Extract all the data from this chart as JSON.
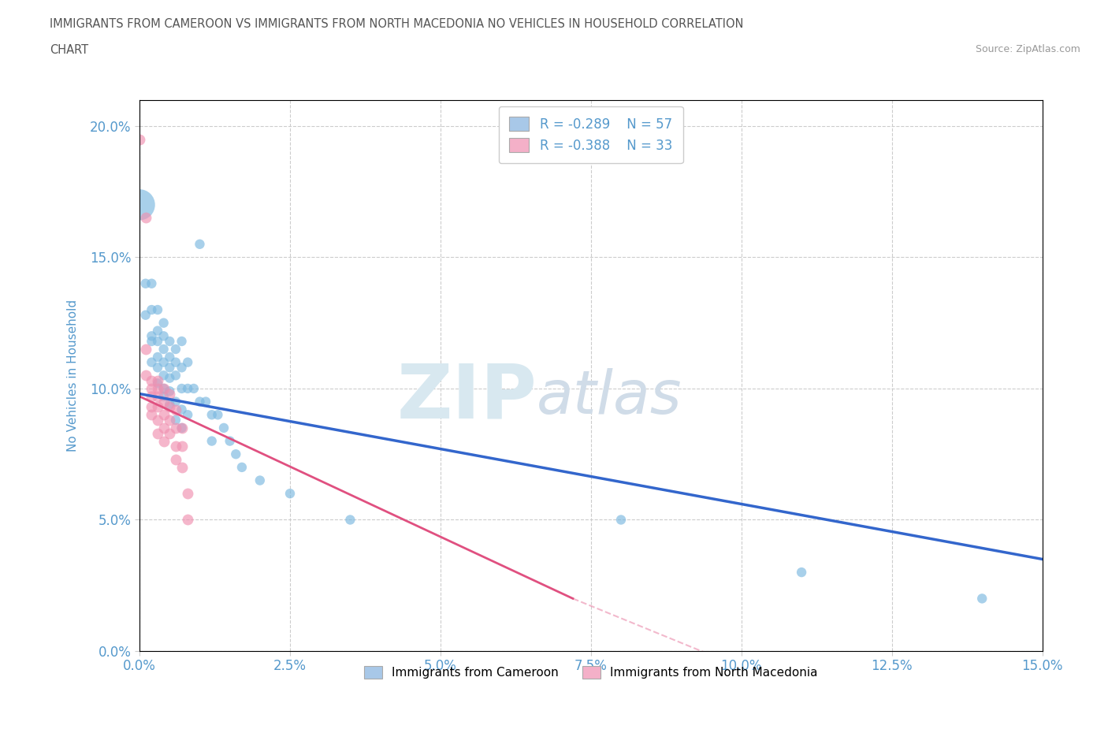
{
  "title_line1": "IMMIGRANTS FROM CAMEROON VS IMMIGRANTS FROM NORTH MACEDONIA NO VEHICLES IN HOUSEHOLD CORRELATION",
  "title_line2": "CHART",
  "source_text": "Source: ZipAtlas.com",
  "ylabel": "No Vehicles in Household",
  "xlim": [
    0.0,
    0.15
  ],
  "ylim": [
    0.0,
    0.21
  ],
  "xticks": [
    0.0,
    0.025,
    0.05,
    0.075,
    0.1,
    0.125,
    0.15
  ],
  "yticks": [
    0.0,
    0.05,
    0.1,
    0.15,
    0.2
  ],
  "xlabel_ticks": [
    "0.0%",
    "2.5%",
    "5.0%",
    "7.5%",
    "10.0%",
    "12.5%",
    "15.0%"
  ],
  "ylabel_ticks": [
    "0.0%",
    "5.0%",
    "10.0%",
    "15.0%",
    "20.0%"
  ],
  "legend_entries": [
    {
      "label": "R = -0.289    N = 57",
      "color": "#a8c8e8"
    },
    {
      "label": "R = -0.388    N = 33",
      "color": "#f4b0c8"
    }
  ],
  "legend_labels_bottom": [
    "Immigrants from Cameroon",
    "Immigrants from North Macedonia"
  ],
  "legend_colors_bottom": [
    "#a8c8e8",
    "#f4b0c8"
  ],
  "blue_color": "#7ab8e0",
  "pink_color": "#f090b0",
  "blue_line_color": "#3366cc",
  "pink_line_color": "#e05080",
  "tick_color": "#5599cc",
  "cameron_scatter": [
    [
      0.0,
      0.17
    ],
    [
      0.001,
      0.14
    ],
    [
      0.001,
      0.128
    ],
    [
      0.002,
      0.14
    ],
    [
      0.002,
      0.13
    ],
    [
      0.002,
      0.12
    ],
    [
      0.002,
      0.118
    ],
    [
      0.002,
      0.11
    ],
    [
      0.003,
      0.13
    ],
    [
      0.003,
      0.122
    ],
    [
      0.003,
      0.118
    ],
    [
      0.003,
      0.112
    ],
    [
      0.003,
      0.108
    ],
    [
      0.003,
      0.102
    ],
    [
      0.004,
      0.125
    ],
    [
      0.004,
      0.12
    ],
    [
      0.004,
      0.115
    ],
    [
      0.004,
      0.11
    ],
    [
      0.004,
      0.105
    ],
    [
      0.004,
      0.1
    ],
    [
      0.004,
      0.097
    ],
    [
      0.005,
      0.118
    ],
    [
      0.005,
      0.112
    ],
    [
      0.005,
      0.108
    ],
    [
      0.005,
      0.104
    ],
    [
      0.005,
      0.099
    ],
    [
      0.005,
      0.094
    ],
    [
      0.006,
      0.115
    ],
    [
      0.006,
      0.11
    ],
    [
      0.006,
      0.105
    ],
    [
      0.006,
      0.095
    ],
    [
      0.006,
      0.088
    ],
    [
      0.007,
      0.118
    ],
    [
      0.007,
      0.108
    ],
    [
      0.007,
      0.1
    ],
    [
      0.007,
      0.092
    ],
    [
      0.007,
      0.085
    ],
    [
      0.008,
      0.11
    ],
    [
      0.008,
      0.1
    ],
    [
      0.008,
      0.09
    ],
    [
      0.009,
      0.1
    ],
    [
      0.01,
      0.155
    ],
    [
      0.01,
      0.095
    ],
    [
      0.011,
      0.095
    ],
    [
      0.012,
      0.09
    ],
    [
      0.012,
      0.08
    ],
    [
      0.013,
      0.09
    ],
    [
      0.014,
      0.085
    ],
    [
      0.015,
      0.08
    ],
    [
      0.016,
      0.075
    ],
    [
      0.017,
      0.07
    ],
    [
      0.02,
      0.065
    ],
    [
      0.025,
      0.06
    ],
    [
      0.035,
      0.05
    ],
    [
      0.08,
      0.05
    ],
    [
      0.11,
      0.03
    ],
    [
      0.14,
      0.02
    ]
  ],
  "cameron_sizes": [
    800,
    80,
    80,
    80,
    80,
    80,
    80,
    80,
    80,
    80,
    80,
    80,
    80,
    80,
    80,
    80,
    80,
    80,
    80,
    80,
    80,
    80,
    80,
    80,
    80,
    80,
    80,
    80,
    80,
    80,
    80,
    80,
    80,
    80,
    80,
    80,
    80,
    80,
    80,
    80,
    80,
    80,
    80,
    80,
    80,
    80,
    80,
    80,
    80,
    80,
    80,
    80,
    80,
    80,
    80,
    80,
    80
  ],
  "macedonia_scatter": [
    [
      0.0,
      0.195
    ],
    [
      0.001,
      0.165
    ],
    [
      0.001,
      0.115
    ],
    [
      0.001,
      0.105
    ],
    [
      0.002,
      0.103
    ],
    [
      0.002,
      0.1
    ],
    [
      0.002,
      0.097
    ],
    [
      0.002,
      0.093
    ],
    [
      0.002,
      0.09
    ],
    [
      0.003,
      0.103
    ],
    [
      0.003,
      0.1
    ],
    [
      0.003,
      0.097
    ],
    [
      0.003,
      0.093
    ],
    [
      0.003,
      0.088
    ],
    [
      0.003,
      0.083
    ],
    [
      0.004,
      0.1
    ],
    [
      0.004,
      0.095
    ],
    [
      0.004,
      0.09
    ],
    [
      0.004,
      0.085
    ],
    [
      0.004,
      0.08
    ],
    [
      0.005,
      0.098
    ],
    [
      0.005,
      0.093
    ],
    [
      0.005,
      0.088
    ],
    [
      0.005,
      0.083
    ],
    [
      0.006,
      0.092
    ],
    [
      0.006,
      0.085
    ],
    [
      0.006,
      0.078
    ],
    [
      0.006,
      0.073
    ],
    [
      0.007,
      0.085
    ],
    [
      0.007,
      0.078
    ],
    [
      0.007,
      0.07
    ],
    [
      0.008,
      0.06
    ],
    [
      0.008,
      0.05
    ]
  ],
  "cameron_line": {
    "x": [
      0.0,
      0.15
    ],
    "y": [
      0.098,
      0.035
    ]
  },
  "macedonia_line_solid": {
    "x": [
      0.0,
      0.072
    ],
    "y": [
      0.097,
      0.02
    ]
  },
  "macedonia_line_dash": {
    "x": [
      0.072,
      0.12
    ],
    "y": [
      0.02,
      -0.025
    ]
  }
}
